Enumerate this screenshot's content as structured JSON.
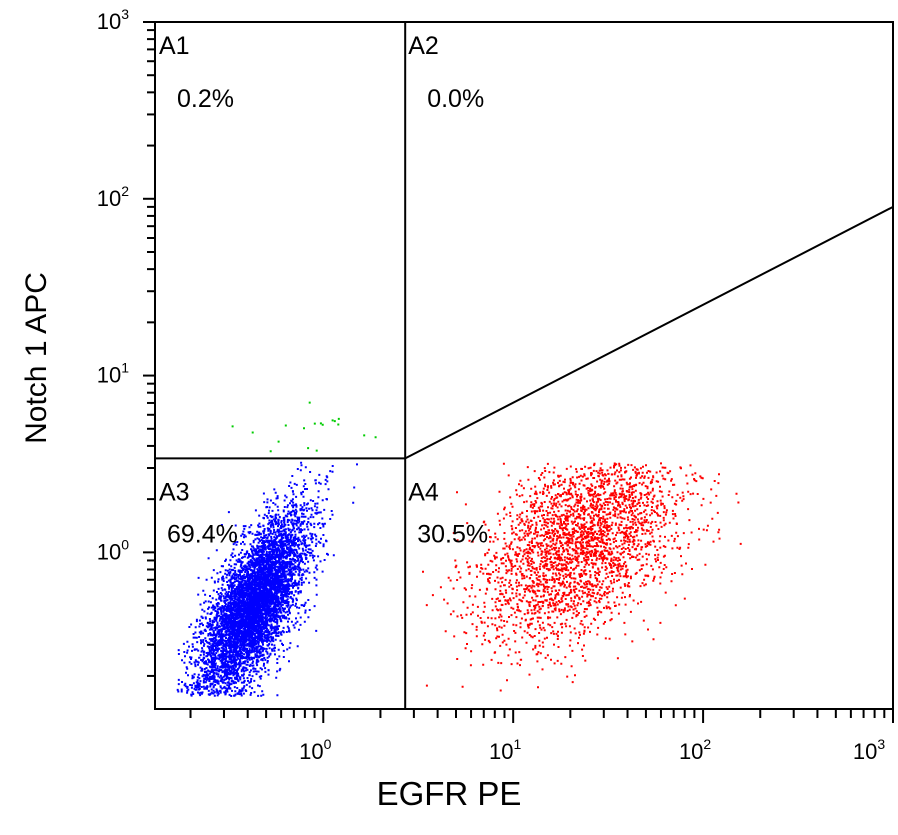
{
  "chart_data": {
    "type": "scatter",
    "title": "",
    "xlabel": "EGFR PE",
    "ylabel": "Notch 1 APC",
    "xscale": "log",
    "yscale": "log",
    "xlim": [
      0.13,
      1000
    ],
    "ylim": [
      0.13,
      1000
    ],
    "x_ticks": [
      {
        "base": "10",
        "exp": "0"
      },
      {
        "base": "10",
        "exp": "1"
      },
      {
        "base": "10",
        "exp": "2"
      },
      {
        "base": "10",
        "exp": "3"
      }
    ],
    "y_ticks": [
      {
        "base": "10",
        "exp": "0"
      },
      {
        "base": "10",
        "exp": "1"
      },
      {
        "base": "10",
        "exp": "2"
      },
      {
        "base": "10",
        "exp": "3"
      }
    ],
    "gates": {
      "vertical_x": 2.7,
      "horizontal_y": 3.4,
      "diagonal": [
        [
          2.7,
          3.4
        ],
        [
          1000,
          90
        ]
      ]
    },
    "quadrants": [
      {
        "name": "A1",
        "percent": "0.2%"
      },
      {
        "name": "A2",
        "percent": "0.0%"
      },
      {
        "name": "A3",
        "percent": "69.4%"
      },
      {
        "name": "A4",
        "percent": "30.5%"
      }
    ],
    "populations": [
      {
        "color": "#0000ff",
        "quadrant": "A3",
        "share": 69.4,
        "center": [
          0.42,
          0.5
        ],
        "spread_log10": [
          0.14,
          0.26
        ],
        "correlation": 0.7
      },
      {
        "color": "#ff0000",
        "quadrant": "A4",
        "share": 30.5,
        "center": [
          22,
          1.1
        ],
        "spread_log10": [
          0.26,
          0.28
        ],
        "correlation": 0.45
      },
      {
        "color": "#00cc00",
        "quadrant": "A1",
        "share": 0.2,
        "center": [
          0.8,
          5.2
        ],
        "spread_log10": [
          0.15,
          0.08
        ],
        "correlation": 0
      }
    ],
    "colors": {
      "axis": "#000000",
      "gate": "#000000"
    },
    "grid": false,
    "legend": "none"
  }
}
